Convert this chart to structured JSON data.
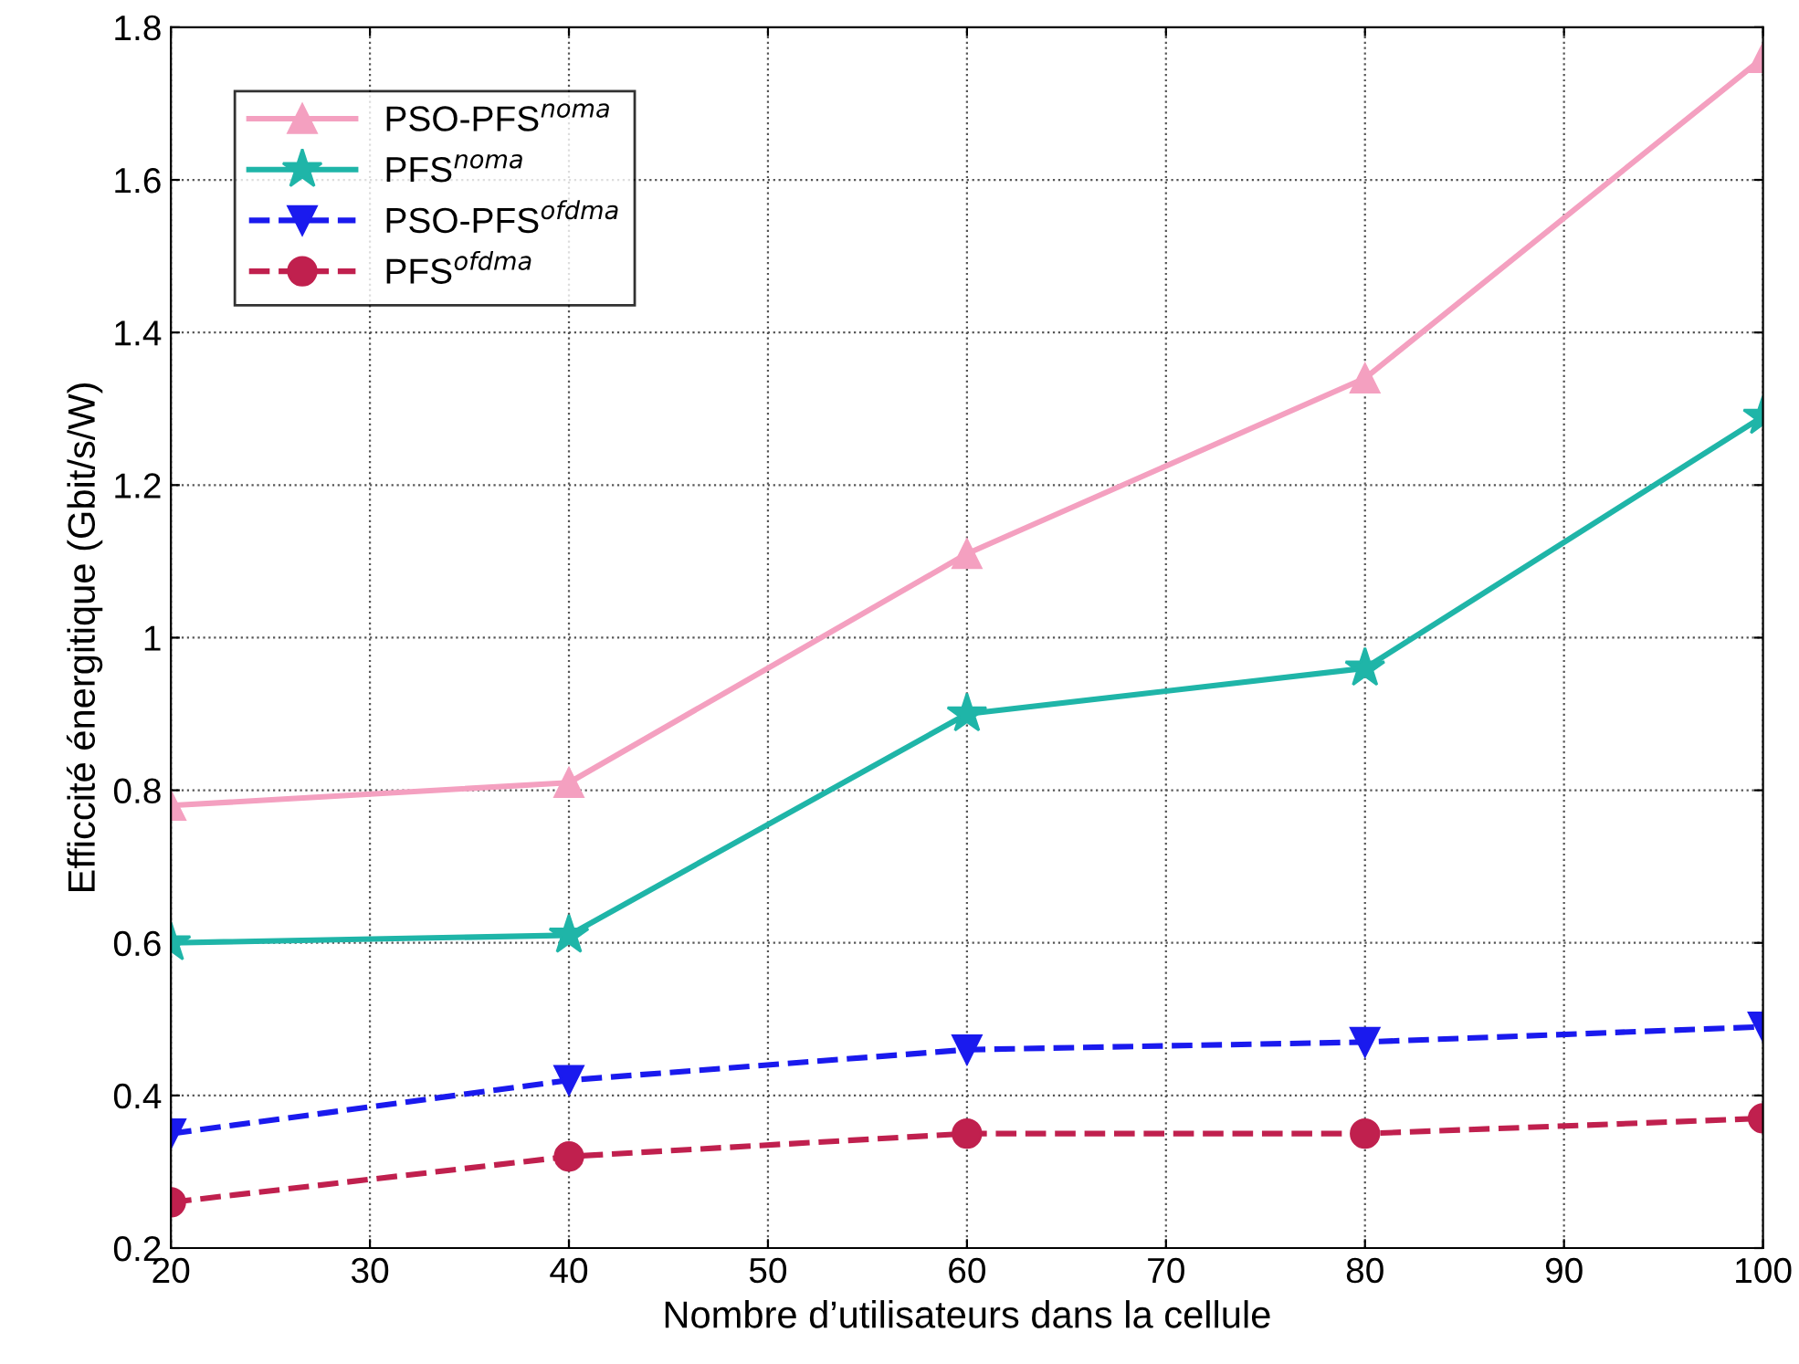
{
  "chart_data": {
    "type": "line",
    "xlabel": "Nombre d’utilisateurs dans la cellule",
    "ylabel": "Efficcité énergitique (Gbit/s/W)",
    "x": [
      20,
      40,
      60,
      80,
      100
    ],
    "series": [
      {
        "name": "PSO-PFS$^{noma}$",
        "color": "#f4a0c0",
        "marker": "triangle",
        "line_style": "solid",
        "values": [
          0.78,
          0.81,
          1.11,
          1.34,
          1.76
        ]
      },
      {
        "name": "PFS$^{noma}$",
        "color": "#1fb5a8",
        "marker": "star",
        "line_style": "solid",
        "values": [
          0.6,
          0.61,
          0.9,
          0.96,
          1.29
        ]
      },
      {
        "name": "PSO-PFS$^{ofdma}$",
        "color": "#1a1aee",
        "marker": "triangle_down",
        "line_style": "dashed",
        "values": [
          0.35,
          0.42,
          0.46,
          0.47,
          0.49
        ]
      },
      {
        "name": "PFS$^{ofdma}$",
        "color": "#c0204e",
        "marker": "circle",
        "line_style": "dashed",
        "values": [
          0.26,
          0.32,
          0.35,
          0.35,
          0.37
        ]
      }
    ],
    "xlim": [
      20,
      100
    ],
    "xticks": [
      20,
      30,
      40,
      50,
      60,
      70,
      80,
      90,
      100
    ],
    "ylim": [
      0.2,
      1.8
    ],
    "yticks": [
      0.2,
      0.4,
      0.6,
      0.8,
      1,
      1.2,
      1.4,
      1.6,
      1.8
    ],
    "grid": true,
    "legend": "top left"
  }
}
